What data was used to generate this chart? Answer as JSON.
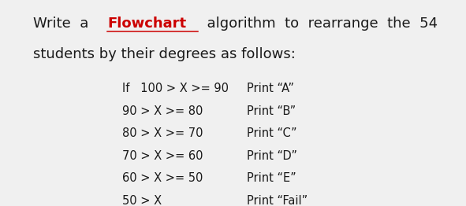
{
  "bg_color": "#f0f0f0",
  "title_fontsize": 13.0,
  "table_fontsize": 10.5,
  "title_line2": "students by their degrees as follows:",
  "conditions": [
    {
      "if_label": "If   100 > X >= 90",
      "print_label": "Print “A”"
    },
    {
      "if_label": "90 > X >= 80",
      "print_label": "Print “B”"
    },
    {
      "if_label": "80 > X >= 70",
      "print_label": "Print “C”"
    },
    {
      "if_label": "70 > X >= 60",
      "print_label": "Print “D”"
    },
    {
      "if_label": "60 > X >= 50",
      "print_label": "Print “E”"
    },
    {
      "if_label": "50 > X",
      "print_label": "Print “Fail”"
    }
  ]
}
